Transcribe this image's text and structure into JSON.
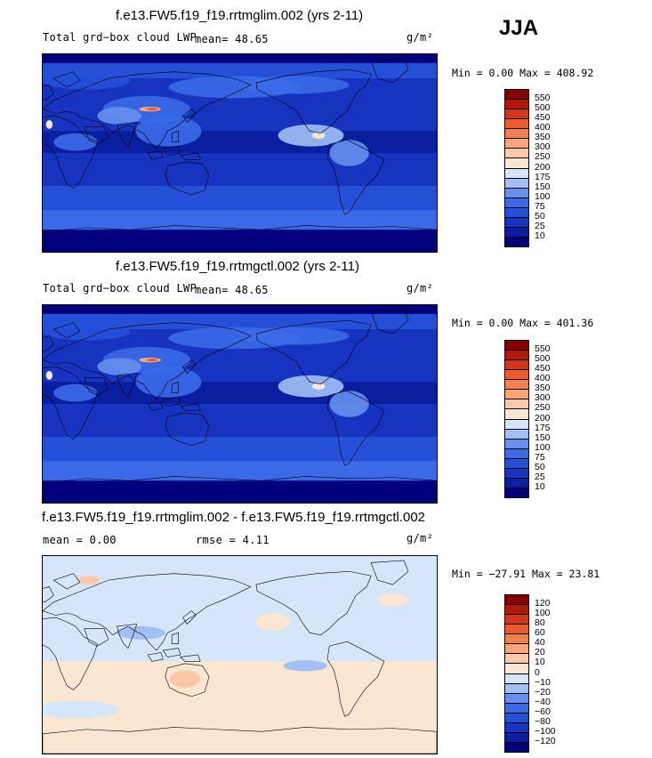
{
  "season": "JJA",
  "panels": [
    {
      "title": "f.e13.FW5.f19_f19.rrtmglim.002 (yrs 2-11)",
      "left_label": "Total grd−box cloud LWP",
      "mean_text": "mean=  48.65",
      "units": "g/m²",
      "minmax": "Min =   0.00 Max = 408.92"
    },
    {
      "title": "f.e13.FW5.f19_f19.rrtmgctl.002 (yrs 2-11)",
      "left_label": "Total grd−box cloud LWP",
      "mean_text": "mean=  48.65",
      "units": "g/m²",
      "minmax": "Min =   0.00 Max = 401.36"
    },
    {
      "title": "f.e13.FW5.f19_f19.rrtmglim.002 - f.e13.FW5.f19_f19.rrtmgctl.002",
      "left_label": "mean =   0.00",
      "mean_text": "rmse =   4.11",
      "units": "g/m²",
      "minmax": "Min = −27.91 Max =  23.81"
    }
  ],
  "chart_data": [
    {
      "type": "heatmap",
      "title": "f.e13.FW5.f19_f19.rrtmglim.002 (yrs 2-11)",
      "subtitle": "Total grd-box cloud LWP",
      "units": "g/m^2",
      "season": "JJA",
      "mean": 48.65,
      "min": 0.0,
      "max": 408.92,
      "contour_levels": [
        10,
        25,
        50,
        75,
        100,
        150,
        175,
        200,
        250,
        300,
        350,
        400,
        450,
        500,
        550
      ],
      "colorbar_labels": [
        "550",
        "500",
        "450",
        "400",
        "350",
        "300",
        "250",
        "200",
        "175",
        "150",
        "100",
        "75",
        "50",
        "25",
        "10"
      ],
      "colors": [
        "#00007f",
        "#0a1ea0",
        "#1634c0",
        "#2450d8",
        "#3a6ae8",
        "#6690ee",
        "#a0c0f6",
        "#d6e6fa",
        "#fbe6d2",
        "#fcc8a8",
        "#f8a578",
        "#f4804e",
        "#ec5a30",
        "#d43418",
        "#b01808",
        "#880000"
      ]
    },
    {
      "type": "heatmap",
      "title": "f.e13.FW5.f19_f19.rrtmgctl.002 (yrs 2-11)",
      "subtitle": "Total grd-box cloud LWP",
      "units": "g/m^2",
      "season": "JJA",
      "mean": 48.65,
      "min": 0.0,
      "max": 401.36,
      "contour_levels": [
        10,
        25,
        50,
        75,
        100,
        150,
        175,
        200,
        250,
        300,
        350,
        400,
        450,
        500,
        550
      ],
      "colorbar_labels": [
        "550",
        "500",
        "450",
        "400",
        "350",
        "300",
        "250",
        "200",
        "175",
        "150",
        "100",
        "75",
        "50",
        "25",
        "10"
      ],
      "colors": [
        "#00007f",
        "#0a1ea0",
        "#1634c0",
        "#2450d8",
        "#3a6ae8",
        "#6690ee",
        "#a0c0f6",
        "#d6e6fa",
        "#fbe6d2",
        "#fcc8a8",
        "#f8a578",
        "#f4804e",
        "#ec5a30",
        "#d43418",
        "#b01808",
        "#880000"
      ]
    },
    {
      "type": "heatmap",
      "title": "f.e13.FW5.f19_f19.rrtmglim.002 - f.e13.FW5.f19_f19.rrtmgctl.002",
      "units": "g/m^2",
      "mean": 0.0,
      "rmse": 4.11,
      "min": -27.91,
      "max": 23.81,
      "contour_levels": [
        -120,
        -100,
        -80,
        -60,
        -40,
        -20,
        -10,
        0,
        10,
        20,
        40,
        60,
        80,
        100,
        120
      ],
      "colorbar_labels": [
        "120",
        "100",
        "80",
        "60",
        "40",
        "20",
        "10",
        "0",
        "−10",
        "−20",
        "−40",
        "−60",
        "−80",
        "−100",
        "−120"
      ],
      "colors": [
        "#00007f",
        "#0a1ea0",
        "#1634c0",
        "#2450d8",
        "#3a6ae8",
        "#6690ee",
        "#a0c0f6",
        "#d6e6fa",
        "#fbe6d2",
        "#fcc8a8",
        "#f8a578",
        "#f4804e",
        "#ec5a30",
        "#d43418",
        "#b01808",
        "#880000"
      ]
    }
  ]
}
